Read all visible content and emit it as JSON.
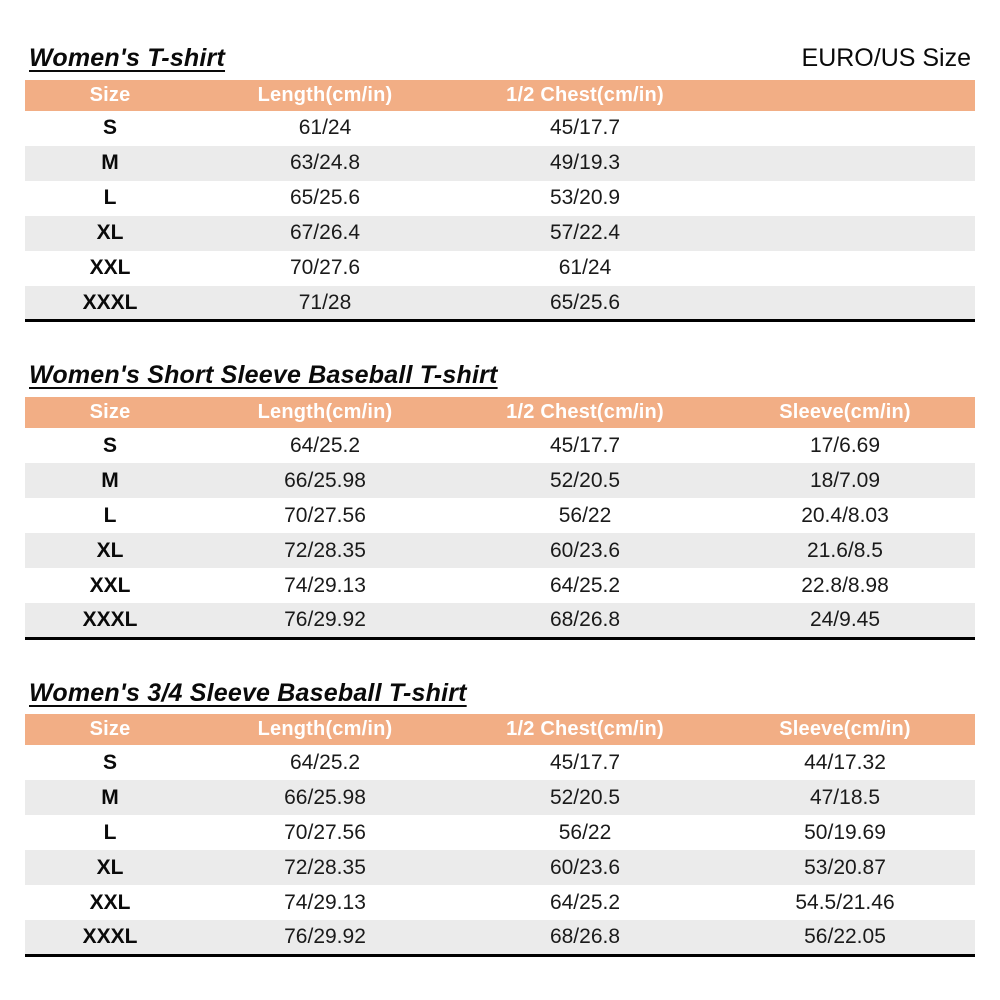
{
  "page": {
    "size_standard_label": "EURO/US Size"
  },
  "colors": {
    "header_bg": "#F2AE85",
    "header_text": "#FFFFFF",
    "stripe_bg": "#EBEBEB"
  },
  "tables": [
    {
      "title": "Women's T-shirt",
      "headers": [
        "Size",
        "Length(cm/in)",
        "1/2 Chest(cm/in)",
        ""
      ],
      "rows": [
        [
          "S",
          "61/24",
          "45/17.7",
          ""
        ],
        [
          "M",
          "63/24.8",
          "49/19.3",
          ""
        ],
        [
          "L",
          "65/25.6",
          "53/20.9",
          ""
        ],
        [
          "XL",
          "67/26.4",
          "57/22.4",
          ""
        ],
        [
          "XXL",
          "70/27.6",
          "61/24",
          ""
        ],
        [
          "XXXL",
          "71/28",
          "65/25.6",
          ""
        ]
      ]
    },
    {
      "title": "Women's Short Sleeve Baseball T-shirt",
      "headers": [
        "Size",
        "Length(cm/in)",
        "1/2 Chest(cm/in)",
        "Sleeve(cm/in)"
      ],
      "rows": [
        [
          "S",
          "64/25.2",
          "45/17.7",
          "17/6.69"
        ],
        [
          "M",
          "66/25.98",
          "52/20.5",
          "18/7.09"
        ],
        [
          "L",
          "70/27.56",
          "56/22",
          "20.4/8.03"
        ],
        [
          "XL",
          "72/28.35",
          "60/23.6",
          "21.6/8.5"
        ],
        [
          "XXL",
          "74/29.13",
          "64/25.2",
          "22.8/8.98"
        ],
        [
          "XXXL",
          "76/29.92",
          "68/26.8",
          "24/9.45"
        ]
      ]
    },
    {
      "title": "Women's 3/4 Sleeve Baseball T-shirt",
      "headers": [
        "Size",
        "Length(cm/in)",
        "1/2 Chest(cm/in)",
        "Sleeve(cm/in)"
      ],
      "rows": [
        [
          "S",
          "64/25.2",
          "45/17.7",
          "44/17.32"
        ],
        [
          "M",
          "66/25.98",
          "52/20.5",
          "47/18.5"
        ],
        [
          "L",
          "70/27.56",
          "56/22",
          "50/19.69"
        ],
        [
          "XL",
          "72/28.35",
          "60/23.6",
          "53/20.87"
        ],
        [
          "XXL",
          "74/29.13",
          "64/25.2",
          "54.5/21.46"
        ],
        [
          "XXXL",
          "76/29.92",
          "68/26.8",
          "56/22.05"
        ]
      ]
    }
  ]
}
